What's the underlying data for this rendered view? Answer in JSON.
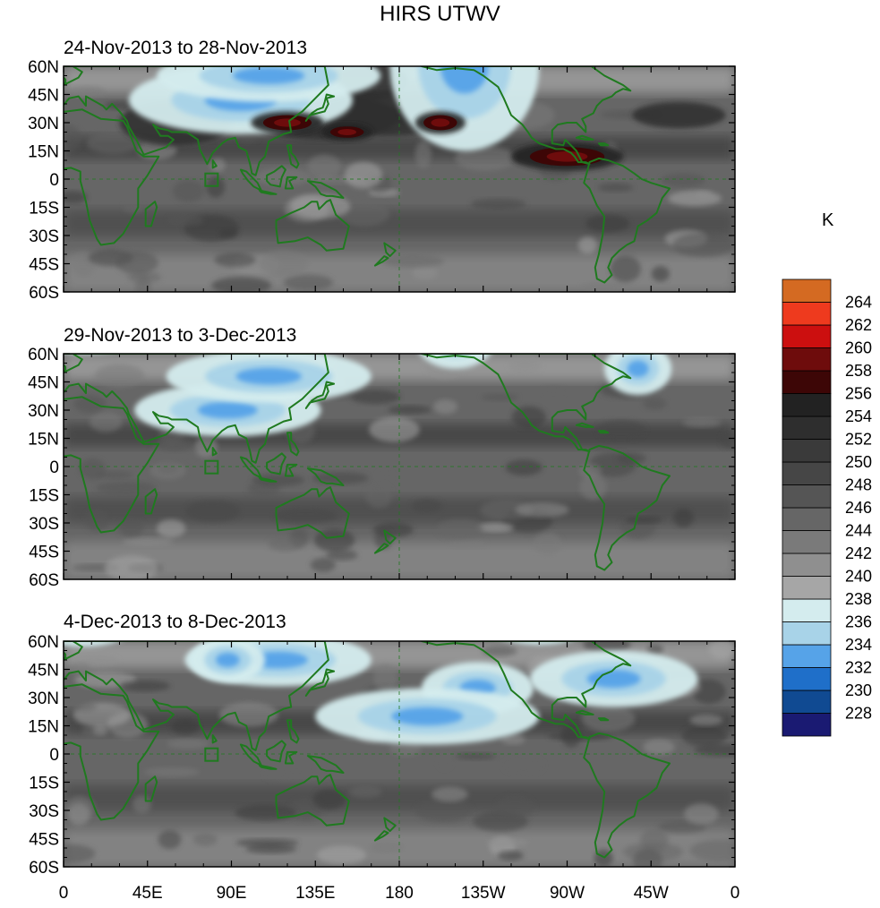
{
  "chart_data": {
    "type": "heatmap",
    "title": "HIRS UTWV",
    "colorbar": {
      "unit": "K",
      "levels": [
        228,
        230,
        232,
        234,
        236,
        238,
        240,
        242,
        244,
        246,
        248,
        250,
        252,
        254,
        256,
        258,
        260,
        262,
        264
      ],
      "colors": [
        "#1a1a72",
        "#104a92",
        "#1f6fc9",
        "#56a3e8",
        "#a8d3e8",
        "#d4ecee",
        "#a6a6a6",
        "#8f8f8f",
        "#7a7a7a",
        "#666666",
        "#555555",
        "#464646",
        "#3a3a3a",
        "#2e2e2e",
        "#222222",
        "#3d0606",
        "#6e0c0c",
        "#cc0f0f",
        "#ee3a1e",
        "#d46a22"
      ]
    },
    "xaxis": {
      "ticks": [
        "0",
        "45E",
        "90E",
        "135E",
        "180",
        "135W",
        "90W",
        "45W",
        "0"
      ],
      "lon_range": [
        0,
        360
      ]
    },
    "yaxis": {
      "ticks": [
        "60N",
        "45N",
        "30N",
        "15N",
        "0",
        "15S",
        "30S",
        "45S",
        "60S"
      ],
      "lat_range": [
        60,
        -60
      ]
    },
    "panels": [
      {
        "title": "24-Nov-2013 to 28-Nov-2013",
        "moist": [
          [
            95,
            42,
            60,
            18
          ],
          [
            175,
            180,
            70,
            25
          ],
          [
            215,
            60,
            40,
            45
          ],
          [
            185,
            220,
            80,
            25
          ],
          [
            222,
            250,
            35,
            30
          ],
          [
            275,
            200,
            55,
            15
          ],
          [
            315,
            205,
            28,
            30
          ],
          [
            110,
            55,
            60,
            14
          ]
        ],
        "dry": [
          [
            163,
            52,
            22,
            10
          ],
          [
            197,
            35,
            20,
            8
          ],
          [
            330,
            34,
            25,
            7
          ],
          [
            140,
            33,
            40,
            12
          ],
          [
            175,
            35,
            40,
            12
          ],
          [
            60,
            30,
            30,
            12
          ]
        ],
        "hot": [
          [
            120,
            30,
            13,
            4
          ],
          [
            152,
            25,
            9,
            3
          ],
          [
            202,
            30,
            9,
            4
          ],
          [
            270,
            12,
            20,
            5
          ]
        ]
      },
      {
        "title": "29-Nov-2013 to 3-Dec-2013",
        "moist": [
          [
            88,
            30,
            50,
            14
          ],
          [
            110,
            48,
            55,
            14
          ],
          [
            210,
            68,
            22,
            16
          ],
          [
            308,
            52,
            18,
            14
          ],
          [
            10,
            75,
            40,
            15
          ],
          [
            210,
            195,
            70,
            25
          ],
          [
            285,
            210,
            50,
            14
          ]
        ],
        "dry": [
          [
            100,
            155,
            60,
            15
          ],
          [
            165,
            175,
            40,
            10
          ],
          [
            245,
            185,
            18,
            14
          ],
          [
            335,
            175,
            18,
            14
          ],
          [
            220,
            120,
            80,
            14
          ]
        ],
        "hot": [
          [
            50,
            140,
            20,
            8
          ],
          [
            75,
            165,
            12,
            6
          ],
          [
            101,
            182,
            12,
            4
          ],
          [
            115,
            168,
            8,
            6
          ],
          [
            162,
            175,
            9,
            6
          ],
          [
            220,
            175,
            7,
            4
          ]
        ]
      },
      {
        "title": "4-Dec-2013 to 8-Dec-2013",
        "moist": [
          [
            222,
            35,
            30,
            14
          ],
          [
            195,
            20,
            60,
            15
          ],
          [
            255,
            80,
            40,
            22
          ],
          [
            295,
            40,
            45,
            15
          ],
          [
            10,
            75,
            35,
            18
          ],
          [
            115,
            50,
            50,
            14
          ],
          [
            88,
            50,
            20,
            12
          ]
        ],
        "dry": [
          [
            50,
            150,
            50,
            16
          ],
          [
            100,
            180,
            65,
            15
          ],
          [
            190,
            180,
            70,
            16
          ],
          [
            260,
            200,
            40,
            14
          ],
          [
            235,
            150,
            45,
            12
          ],
          [
            338,
            185,
            18,
            14
          ]
        ],
        "hot": [
          [
            40,
            144,
            18,
            8
          ],
          [
            98,
            184,
            30,
            10
          ],
          [
            185,
            156,
            25,
            8
          ],
          [
            286,
            160,
            18,
            8
          ],
          [
            291,
            102,
            18,
            6
          ]
        ]
      }
    ]
  }
}
